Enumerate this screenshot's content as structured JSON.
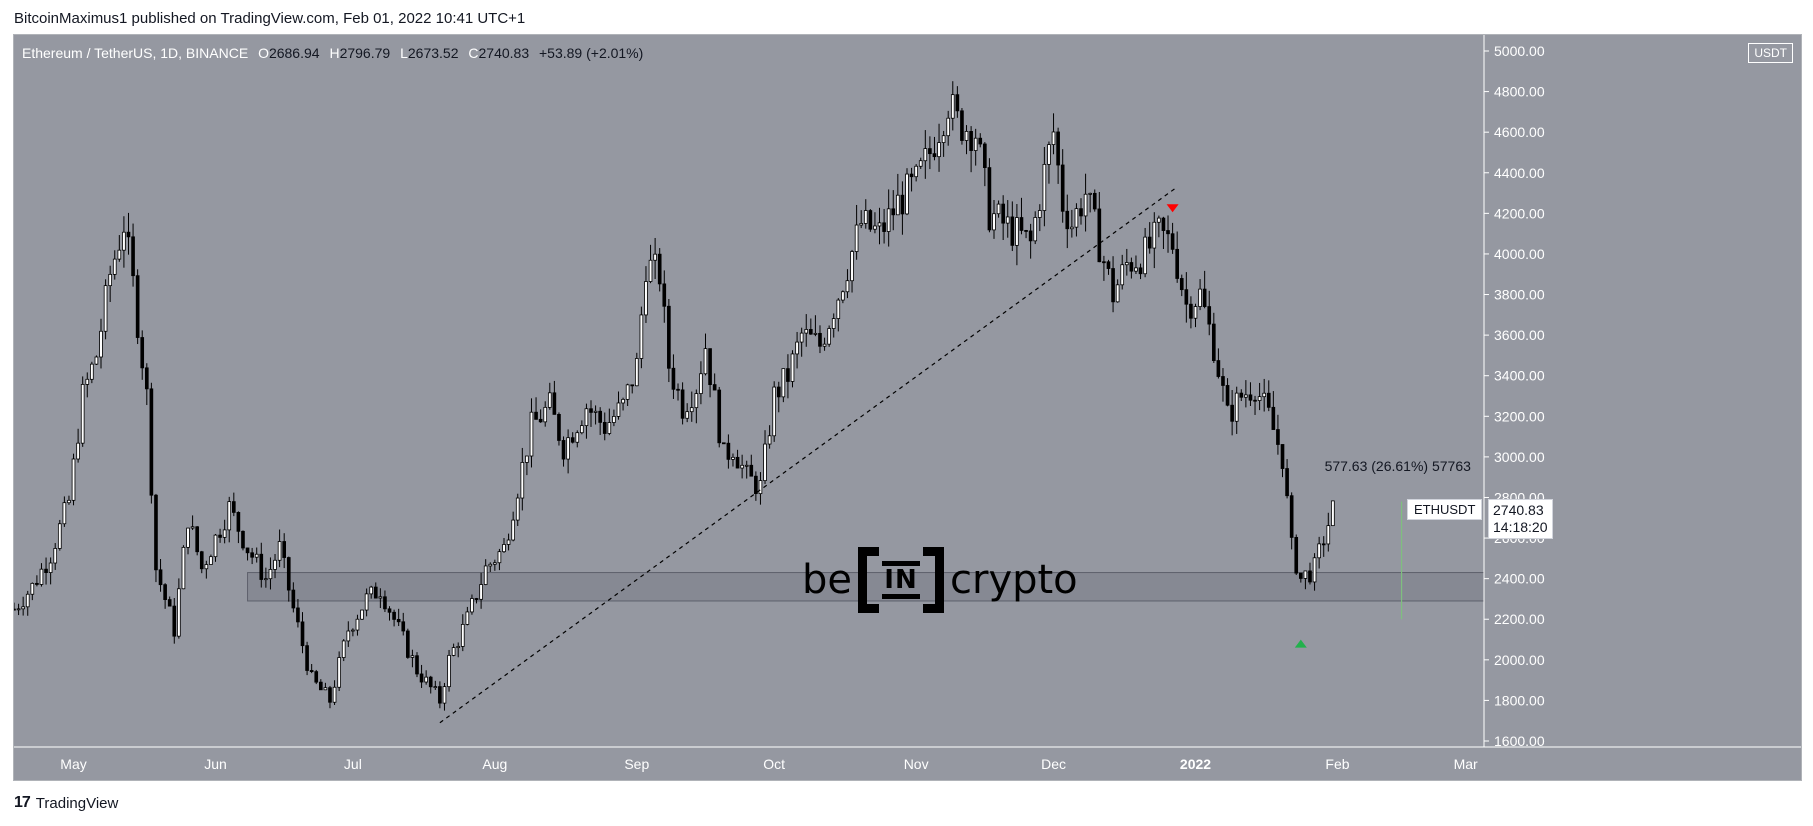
{
  "header": {
    "published_text": "BitcoinMaximus1 published on TradingView.com, Feb 01, 2022 10:41 UTC+1"
  },
  "footer": {
    "logo_mark": "17",
    "brand": "TradingView"
  },
  "symbol": {
    "title": "Ethereum / TetherUS, 1D, BINANCE",
    "o_label": "O",
    "o_value": "2686.94",
    "h_label": "H",
    "h_value": "2796.79",
    "l_label": "L",
    "l_value": "2673.52",
    "c_label": "C",
    "c_value": "2740.83",
    "change": "+53.89 (+2.01%)",
    "ticker": "ETHUSDT",
    "currency": "USDT",
    "last_price": "2740.83",
    "countdown": "14:18:20"
  },
  "watermark": {
    "left": "be",
    "middle": "IN",
    "right": "crypto"
  },
  "colors": {
    "background": "#9598a1",
    "bull_body": "#ffffff",
    "bear_body": "#000000",
    "wick": "#000000",
    "support_zone": "#868993",
    "down_marker": "#ff0000",
    "up_marker": "#22b14c",
    "measure_line": "#7fbf7f"
  },
  "chart_data": {
    "type": "candlestick",
    "title": "Ethereum / TetherUS, 1D, BINANCE",
    "y_axis": {
      "min": 1600,
      "max": 5000,
      "ticks": [
        "1600.00",
        "1800.00",
        "2000.00",
        "2200.00",
        "2400.00",
        "2600.00",
        "2800.00",
        "3000.00",
        "3200.00",
        "3400.00",
        "3600.00",
        "3800.00",
        "4000.00",
        "4200.00",
        "4400.00",
        "4600.00",
        "4800.00",
        "5000.00"
      ]
    },
    "x_axis": {
      "start": "2021-04-18",
      "end": "2022-03-05",
      "labels": [
        {
          "text": "May",
          "date": "2021-05-01"
        },
        {
          "text": "Jun",
          "date": "2021-06-01"
        },
        {
          "text": "Jul",
          "date": "2021-07-01"
        },
        {
          "text": "Aug",
          "date": "2021-08-01"
        },
        {
          "text": "Sep",
          "date": "2021-09-01"
        },
        {
          "text": "Oct",
          "date": "2021-10-01"
        },
        {
          "text": "Nov",
          "date": "2021-11-01"
        },
        {
          "text": "Dec",
          "date": "2021-12-01"
        },
        {
          "text": "2022",
          "date": "2022-01-01"
        },
        {
          "text": "Feb",
          "date": "2022-02-01"
        },
        {
          "text": "Mar",
          "date": "2022-03-01"
        }
      ]
    },
    "series": [
      {
        "date": "2021-04-18",
        "close": 2250
      },
      {
        "date": "2021-04-22",
        "close": 2360
      },
      {
        "date": "2021-04-26",
        "close": 2520
      },
      {
        "date": "2021-04-30",
        "close": 2780
      },
      {
        "date": "2021-05-03",
        "close": 3300
      },
      {
        "date": "2021-05-06",
        "close": 3500
      },
      {
        "date": "2021-05-09",
        "close": 3900
      },
      {
        "date": "2021-05-12",
        "close": 4150
      },
      {
        "date": "2021-05-14",
        "close": 3850
      },
      {
        "date": "2021-05-17",
        "close": 3300
      },
      {
        "date": "2021-05-19",
        "close": 2450
      },
      {
        "date": "2021-05-21",
        "close": 2300
      },
      {
        "date": "2021-05-23",
        "close": 2150
      },
      {
        "date": "2021-05-26",
        "close": 2700
      },
      {
        "date": "2021-05-29",
        "close": 2450
      },
      {
        "date": "2021-06-02",
        "close": 2650
      },
      {
        "date": "2021-06-04",
        "close": 2750
      },
      {
        "date": "2021-06-08",
        "close": 2550
      },
      {
        "date": "2021-06-12",
        "close": 2400
      },
      {
        "date": "2021-06-15",
        "close": 2550
      },
      {
        "date": "2021-06-18",
        "close": 2250
      },
      {
        "date": "2021-06-22",
        "close": 1900
      },
      {
        "date": "2021-06-26",
        "close": 1800
      },
      {
        "date": "2021-06-30",
        "close": 2150
      },
      {
        "date": "2021-07-04",
        "close": 2300
      },
      {
        "date": "2021-07-07",
        "close": 2350
      },
      {
        "date": "2021-07-11",
        "close": 2150
      },
      {
        "date": "2021-07-15",
        "close": 1950
      },
      {
        "date": "2021-07-20",
        "close": 1800
      },
      {
        "date": "2021-07-22",
        "close": 2000
      },
      {
        "date": "2021-07-26",
        "close": 2200
      },
      {
        "date": "2021-07-30",
        "close": 2450
      },
      {
        "date": "2021-08-03",
        "close": 2550
      },
      {
        "date": "2021-08-06",
        "close": 2850
      },
      {
        "date": "2021-08-09",
        "close": 3150
      },
      {
        "date": "2021-08-13",
        "close": 3250
      },
      {
        "date": "2021-08-16",
        "close": 3050
      },
      {
        "date": "2021-08-21",
        "close": 3250
      },
      {
        "date": "2021-08-25",
        "close": 3150
      },
      {
        "date": "2021-08-29",
        "close": 3250
      },
      {
        "date": "2021-09-01",
        "close": 3450
      },
      {
        "date": "2021-09-03",
        "close": 3950
      },
      {
        "date": "2021-09-06",
        "close": 3900
      },
      {
        "date": "2021-09-08",
        "close": 3450
      },
      {
        "date": "2021-09-11",
        "close": 3250
      },
      {
        "date": "2021-09-14",
        "close": 3350
      },
      {
        "date": "2021-09-16",
        "close": 3550
      },
      {
        "date": "2021-09-20",
        "close": 3000
      },
      {
        "date": "2021-09-22",
        "close": 3050
      },
      {
        "date": "2021-09-25",
        "close": 2900
      },
      {
        "date": "2021-09-28",
        "close": 2850
      },
      {
        "date": "2021-10-01",
        "close": 3300
      },
      {
        "date": "2021-10-04",
        "close": 3400
      },
      {
        "date": "2021-10-07",
        "close": 3600
      },
      {
        "date": "2021-10-11",
        "close": 3550
      },
      {
        "date": "2021-10-15",
        "close": 3800
      },
      {
        "date": "2021-10-20",
        "close": 4150
      },
      {
        "date": "2021-10-24",
        "close": 4100
      },
      {
        "date": "2021-10-28",
        "close": 4250
      },
      {
        "date": "2021-11-01",
        "close": 4350
      },
      {
        "date": "2021-11-04",
        "close": 4500
      },
      {
        "date": "2021-11-08",
        "close": 4750
      },
      {
        "date": "2021-11-10",
        "close": 4650
      },
      {
        "date": "2021-11-14",
        "close": 4600
      },
      {
        "date": "2021-11-17",
        "close": 4200
      },
      {
        "date": "2021-11-20",
        "close": 4150
      },
      {
        "date": "2021-11-23",
        "close": 4100
      },
      {
        "date": "2021-11-26",
        "close": 4050
      },
      {
        "date": "2021-11-29",
        "close": 4400
      },
      {
        "date": "2021-12-01",
        "close": 4600
      },
      {
        "date": "2021-12-03",
        "close": 4250
      },
      {
        "date": "2021-12-05",
        "close": 4150
      },
      {
        "date": "2021-12-08",
        "close": 4300
      },
      {
        "date": "2021-12-11",
        "close": 4050
      },
      {
        "date": "2021-12-14",
        "close": 3800
      },
      {
        "date": "2021-12-17",
        "close": 3950
      },
      {
        "date": "2021-12-21",
        "close": 4000
      },
      {
        "date": "2021-12-24",
        "close": 4100
      },
      {
        "date": "2021-12-27",
        "close": 4050
      },
      {
        "date": "2021-12-30",
        "close": 3750
      },
      {
        "date": "2022-01-02",
        "close": 3800
      },
      {
        "date": "2022-01-05",
        "close": 3550
      },
      {
        "date": "2022-01-08",
        "close": 3200
      },
      {
        "date": "2022-01-11",
        "close": 3300
      },
      {
        "date": "2022-01-14",
        "close": 3350
      },
      {
        "date": "2022-01-17",
        "close": 3200
      },
      {
        "date": "2022-01-20",
        "close": 3000
      },
      {
        "date": "2022-01-22",
        "close": 2550
      },
      {
        "date": "2022-01-24",
        "close": 2400
      },
      {
        "date": "2022-01-27",
        "close": 2450
      },
      {
        "date": "2022-01-29",
        "close": 2600
      },
      {
        "date": "2022-01-31",
        "close": 2740
      }
    ],
    "trendline": {
      "from": {
        "date": "2021-07-20",
        "price": 1690
      },
      "to": {
        "date": "2021-12-28",
        "price": 4330
      }
    },
    "support_zone": {
      "from": "2021-06-08",
      "low": 2290,
      "high": 2430
    },
    "down_marker": {
      "date": "2021-12-27",
      "price": 4220
    },
    "up_marker": {
      "date": "2022-01-24",
      "price": 2080
    },
    "measure": {
      "date": "2022-02-15",
      "from": 2200,
      "to": 2780,
      "label": "577.63 (26.61%) 57763"
    }
  }
}
